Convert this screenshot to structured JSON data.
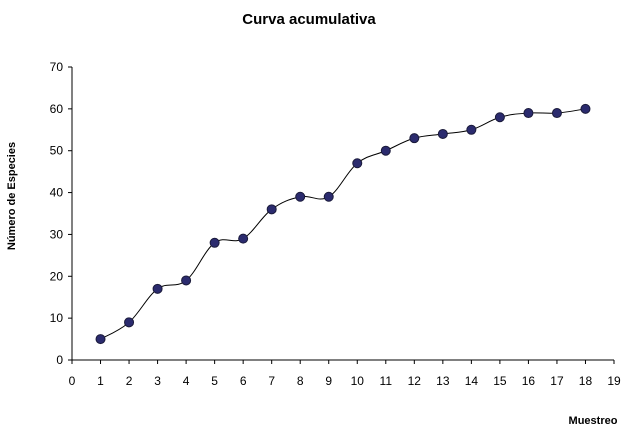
{
  "chart_data": {
    "type": "line",
    "title": "Curva acumulativa",
    "xlabel": "Muestreo",
    "ylabel": "Número de Especies",
    "xlim": [
      0,
      19
    ],
    "ylim": [
      0,
      70
    ],
    "xticks": [
      0,
      1,
      2,
      3,
      4,
      5,
      6,
      7,
      8,
      9,
      10,
      11,
      12,
      13,
      14,
      15,
      16,
      17,
      18,
      19
    ],
    "yticks": [
      0,
      10,
      20,
      30,
      40,
      50,
      60,
      70
    ],
    "grid": false,
    "legend": "none",
    "series": [
      {
        "x": [
          1,
          2,
          3,
          4,
          5,
          6,
          7,
          8,
          9,
          10,
          11,
          12,
          13,
          14,
          15,
          16,
          17,
          18
        ],
        "y": [
          5,
          9,
          17,
          19,
          28,
          29,
          36,
          39,
          39,
          47,
          50,
          53,
          54,
          55,
          58,
          59,
          59,
          60
        ],
        "line_color": "#000000",
        "marker_color": "#2b2b6e"
      }
    ]
  }
}
